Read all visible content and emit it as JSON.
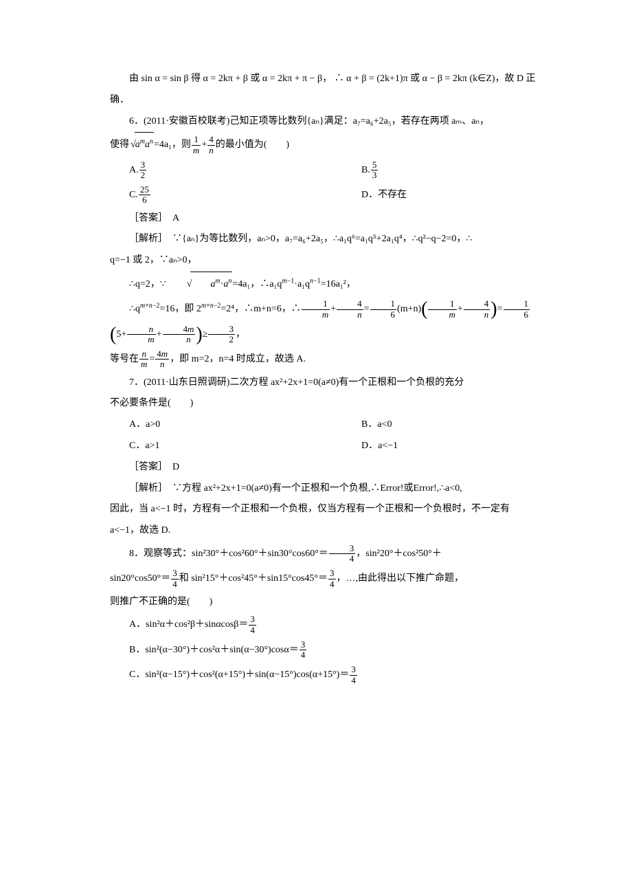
{
  "p_intro": "由 sin α = sin β 得 α = 2kπ + β 或 α = 2kπ + π − β， ∴ α + β = (2k+1)π 或 α − β = 2kπ (k∈Z)，故 D 正确．",
  "q6": {
    "stem_a": "6．(2011·安徽百校联考)己知正项等比数列{aₙ}满足：a₇=a₆+2a₅，若存在两项 aₘ、aₙ，",
    "stem_b_pre": "使得",
    "stem_b_mid": "=4a₁，则",
    "stem_b_post": "的最小值为(　　)",
    "optA_label": "A.",
    "optA_num": "3",
    "optA_den": "2",
    "optB_label": "B.",
    "optB_num": "5",
    "optB_den": "3",
    "optC_label": "C.",
    "optC_num": "25",
    "optC_den": "6",
    "optD": "D．不存在",
    "ans": "［答案］　A",
    "sol1": "［解析］　∵{aₙ}为等比数列，aₙ>0，a₇=a₆+2a₅，∴a₁q⁶=a₁q⁵+2a₁q⁴，∴q²−q−2=0，∴",
    "sol2": "q=−1 或 2，∵aₙ>0，",
    "sol3_pre": "∴q=2，∵",
    "sol3_mid": "=4a₁，∴a₁q",
    "sol3_mid2": "·a₁q",
    "sol3_post": "=16a₁²，",
    "sol4_pre": "∴q",
    "sol4_a": "=16，即 2",
    "sol4_b": "=2⁴，∴m+n=6，∴",
    "sol4_c": "(m+n)",
    "sol4_d": "5+",
    "sol4_e": "≥",
    "sol5_a": "等号在",
    "sol5_b": "，即 m=2，n=4 时成立，故选 A."
  },
  "q7": {
    "stem_a": "7．(2011·山东日照调研)二次方程 ax²+2x+1=0(a≠0)有一个正根和一个负根的充分",
    "stem_b": "不必要条件是(　　)",
    "optA": "A．a>0",
    "optB": "B．a<0",
    "optC": "C．a>1",
    "optD": "D．a<−1",
    "ans": "［答案］　D",
    "sol1": "［解析］　∵方程 ax²+2x+1=0(a≠0)有一个正根和一个负根,∴Error!或Error!,∴a<0,",
    "sol2": "因此，当 a<−1 时，方程有一个正根和一个负根，仅当方程有一个正根和一个负根时，不一定有 a<−1，故选 D."
  },
  "q8": {
    "stem_a": "8．观察等式：sin²30°＋cos²60°＋sin30°cos60°＝",
    "stem_b": "，sin²20°＋cos²50°＋",
    "stem_c": "sin20°cos50°＝",
    "stem_d": "和 sin²15°＋cos²45°＋sin15°cos45°＝",
    "stem_e": "，…,由此得出以下推广命题，",
    "stem_f": "则推广不正确的是(　　)",
    "optA_pre": "A．sin²α＋cos²β＋sinαcosβ＝",
    "optB_pre": "B．sin²(α−30°)＋cos²α＋sin(α−30°)cosα＝",
    "optC_pre": "C．sin²(α−15°)＋cos²(α+15°)＋sin(α−15°)cos(α+15°)＝",
    "frac_num": "3",
    "frac_den": "4"
  }
}
